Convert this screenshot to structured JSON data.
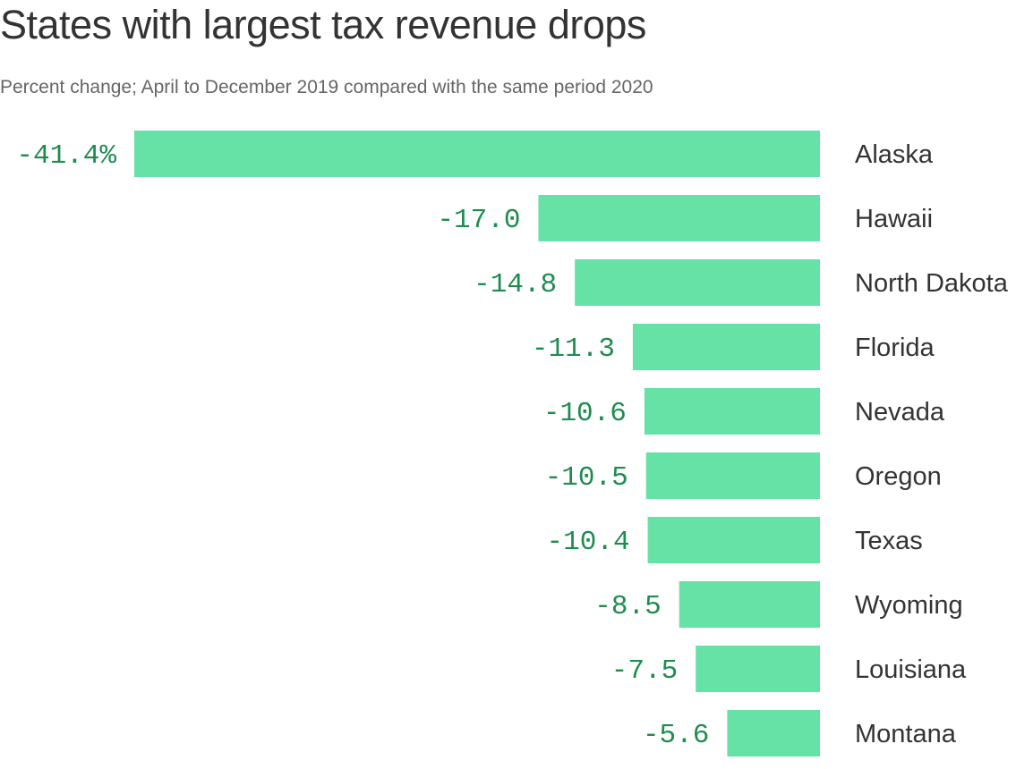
{
  "title": "States with largest tax revenue drops",
  "subtitle": "Percent change; April to December 2019 compared with the same period 2020",
  "chart_data": {
    "type": "bar",
    "orientation": "horizontal",
    "title": "States with largest tax revenue drops",
    "subtitle": "Percent change; April to December 2019 compared with the same period 2020",
    "categories": [
      "Alaska",
      "Hawaii",
      "North Dakota",
      "Florida",
      "Nevada",
      "Oregon",
      "Texas",
      "Wyoming",
      "Louisiana",
      "Montana"
    ],
    "values": [
      -41.4,
      -17.0,
      -14.8,
      -11.3,
      -10.6,
      -10.5,
      -10.4,
      -8.5,
      -7.5,
      -5.6
    ],
    "data_labels": [
      "-41.4%",
      "-17.0",
      "-14.8",
      "-11.3",
      "-10.6",
      "-10.5",
      "-10.4",
      "-8.5",
      "-7.5",
      "-5.6"
    ],
    "grid": false,
    "axes_visible": false,
    "colors": {
      "bar": "#66e2a6",
      "value_label": "#1e8c50",
      "category_label": "#333333"
    }
  }
}
